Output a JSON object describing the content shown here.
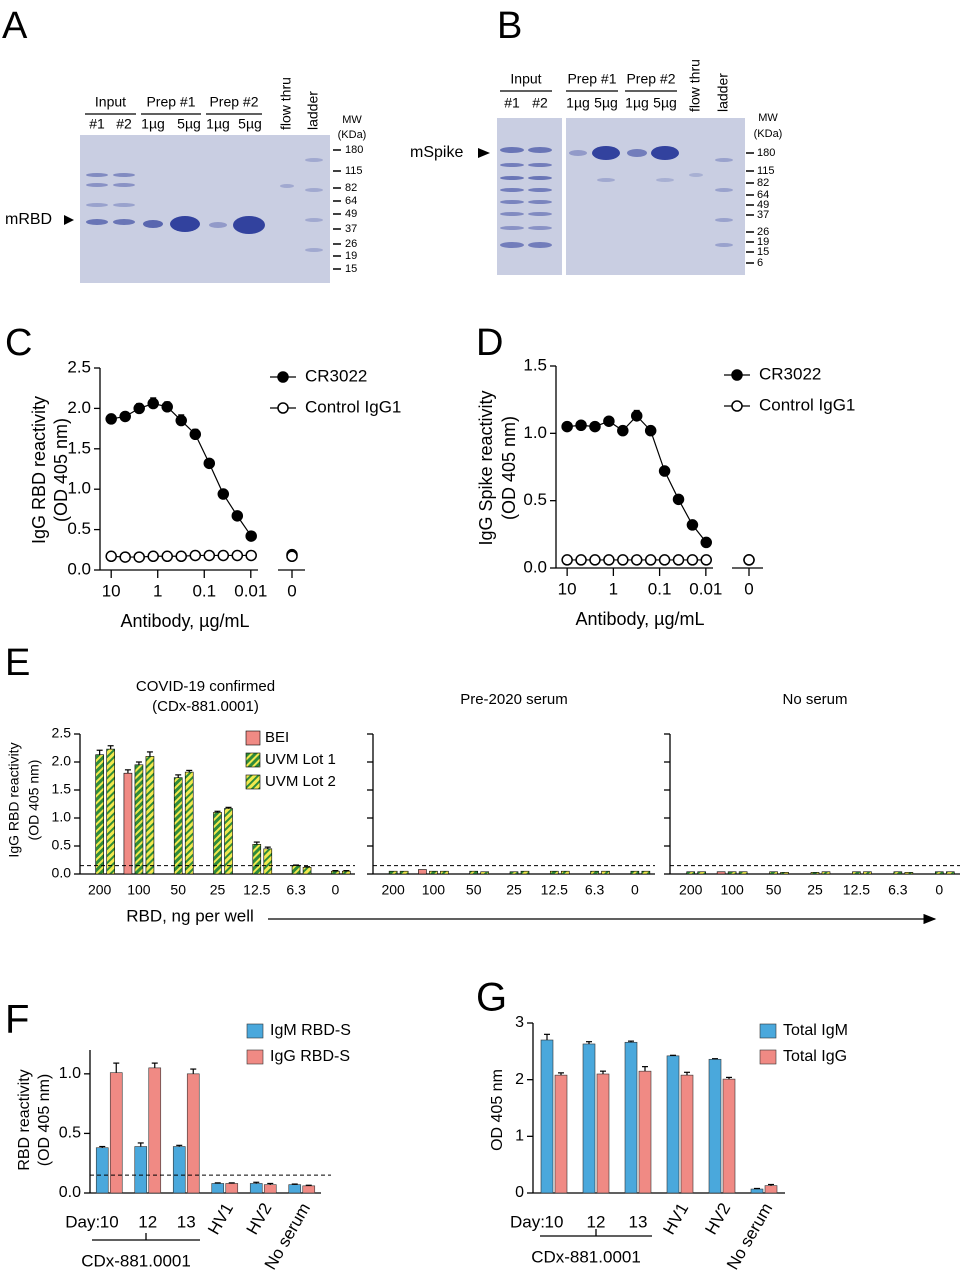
{
  "gels": [
    {
      "letter": "A",
      "protein": "mRBD",
      "groups": [
        {
          "label": "Input",
          "lanes": [
            "#1",
            "#2"
          ]
        },
        {
          "label": "Prep #1",
          "lanes": [
            "1µg",
            "5µg"
          ]
        },
        {
          "label": "Prep #2",
          "lanes": [
            "1µg",
            "5µg"
          ]
        }
      ],
      "extra_lanes": [
        "flow thru",
        "ladder"
      ],
      "mw_title": "MW",
      "mw_unit": "(KDa)",
      "markers": [
        "180",
        "115",
        "82",
        "64",
        "49",
        "37",
        "26",
        "19",
        "15"
      ]
    },
    {
      "letter": "B",
      "protein": "mSpike",
      "groups": [
        {
          "label": "Input",
          "lanes": [
            "#1",
            "#2"
          ]
        },
        {
          "label": "Prep #1",
          "lanes": [
            "1µg",
            "5µg"
          ]
        },
        {
          "label": "Prep #2",
          "lanes": [
            "1µg",
            "5µg"
          ]
        }
      ],
      "extra_lanes": [
        "flow thru",
        "ladder"
      ],
      "mw_title": "MW",
      "mw_unit": "(KDa)",
      "markers": [
        "180",
        "115",
        "82",
        "64",
        "49",
        "37",
        "26",
        "19",
        "15",
        "6"
      ]
    }
  ],
  "chart_data": [
    {
      "letter": "C",
      "type": "line",
      "ylabel": [
        "IgG RBD reactivity",
        "(OD 405 nm)"
      ],
      "xlabel": "Antibody, µg/mL",
      "x": [
        10,
        5,
        2.5,
        1.25,
        0.625,
        0.3125,
        0.156,
        0.078,
        0.039,
        0.0195,
        0.0098
      ],
      "xlim": [
        15,
        0.007
      ],
      "xticks": [
        10,
        1,
        0.1,
        0.01
      ],
      "log_x": true,
      "zero_label": "0",
      "ylim": [
        0,
        2.5
      ],
      "yticks": [
        {
          "value": 0,
          "label": "0.0"
        },
        0.5,
        {
          "value": 1,
          "label": "1.0"
        },
        1.5,
        {
          "value": 2,
          "label": "2.0"
        },
        2.5
      ],
      "series": [
        {
          "name": "CR3022",
          "color": "#000000",
          "marker": "filled",
          "values": [
            1.87,
            1.9,
            2.0,
            2.06,
            2.02,
            1.85,
            1.68,
            1.32,
            0.94,
            0.67,
            0.42
          ],
          "errors": [
            0.05,
            0.05,
            0.06,
            0.07,
            0.06,
            0.07,
            0.06,
            0.04,
            0.02,
            0.02,
            0.02
          ],
          "zero_value": 0.19
        },
        {
          "name": "Control IgG1",
          "color": "#000000",
          "marker": "open",
          "values": [
            0.17,
            0.16,
            0.16,
            0.17,
            0.17,
            0.17,
            0.18,
            0.18,
            0.18,
            0.18,
            0.18
          ],
          "zero_value": 0.17
        }
      ]
    },
    {
      "letter": "D",
      "type": "line",
      "ylabel": [
        "IgG Spike reactivity",
        "(OD 405 nm)"
      ],
      "xlabel": "Antibody, µg/mL",
      "x": [
        10,
        5,
        2.5,
        1.25,
        0.625,
        0.3125,
        0.156,
        0.078,
        0.039,
        0.0195,
        0.0098
      ],
      "xlim": [
        15,
        0.007
      ],
      "xticks": [
        10,
        1,
        0.1,
        0.01
      ],
      "log_x": true,
      "zero_label": "0",
      "ylim": [
        0,
        1.5
      ],
      "yticks": [
        {
          "value": 0,
          "label": "0.0"
        },
        0.5,
        {
          "value": 1,
          "label": "1.0"
        },
        1.5
      ],
      "series": [
        {
          "name": "CR3022",
          "color": "#000000",
          "marker": "filled",
          "values": [
            1.05,
            1.06,
            1.05,
            1.09,
            1.02,
            1.13,
            1.02,
            0.72,
            0.51,
            0.32,
            0.19
          ],
          "errors": [
            0.02,
            0.02,
            0.02,
            0.02,
            0.02,
            0.04,
            0.02,
            0.02,
            0.02,
            0.02,
            0.02
          ],
          "zero_value": 0.06
        },
        {
          "name": "Control IgG1",
          "color": "#000000",
          "marker": "open",
          "values": [
            0.06,
            0.06,
            0.06,
            0.06,
            0.06,
            0.06,
            0.06,
            0.06,
            0.06,
            0.06,
            0.06
          ],
          "zero_value": 0.06
        }
      ]
    },
    {
      "letter": "E",
      "type": "bar-panels",
      "ylabel": [
        "IgG RBD reactivity",
        "(OD 405 nm)"
      ],
      "xlabel": "RBD, ng per well",
      "categories": [
        "200",
        "100",
        "50",
        "25",
        "12.5",
        "6.3",
        "0"
      ],
      "ylim": [
        0,
        2.5
      ],
      "yticks": [
        {
          "value": 0,
          "label": "0.0"
        },
        0.5,
        {
          "value": 1,
          "label": "1.0"
        },
        1.5,
        {
          "value": 2,
          "label": "2.0"
        },
        2.5
      ],
      "threshold": 0.15,
      "series": [
        {
          "name": "BEI",
          "color": "#f08a84"
        },
        {
          "name": "UVM Lot 1",
          "color": "#2e8b3a",
          "stripe": "#f2e94e"
        },
        {
          "name": "UVM Lot 2",
          "color": "#f2e94e",
          "stripe": "#2e8b3a"
        }
      ],
      "subplots": [
        {
          "title": [
            "COVID-19 confirmed",
            "(CDx-881.0001)"
          ],
          "values": [
            [
              null,
              1.8,
              null,
              null,
              null,
              null,
              null
            ],
            [
              2.13,
              1.95,
              1.72,
              1.1,
              0.53,
              0.15,
              0.05
            ],
            [
              2.23,
              2.1,
              1.82,
              1.17,
              0.45,
              0.12,
              0.05
            ]
          ],
          "errors": [
            [
              null,
              0.06,
              null,
              null,
              null,
              null,
              null
            ],
            [
              0.08,
              0.05,
              0.05,
              0.02,
              0.04,
              0.01,
              0.01
            ],
            [
              0.06,
              0.08,
              0.03,
              0.02,
              0.03,
              0.01,
              0.01
            ]
          ]
        },
        {
          "title": [
            "Pre-2020 serum"
          ],
          "values": [
            [
              null,
              0.08,
              null,
              null,
              null,
              null,
              null
            ],
            [
              0.05,
              0.05,
              0.05,
              0.04,
              0.05,
              0.05,
              0.05
            ],
            [
              0.05,
              0.05,
              0.04,
              0.05,
              0.05,
              0.05,
              0.05
            ]
          ]
        },
        {
          "title": [
            "No serum"
          ],
          "values": [
            [
              null,
              0.04,
              null,
              null,
              null,
              null,
              null
            ],
            [
              0.04,
              0.04,
              0.04,
              0.03,
              0.04,
              0.04,
              0.04
            ],
            [
              0.04,
              0.04,
              0.03,
              0.04,
              0.04,
              0.03,
              0.04
            ]
          ]
        }
      ]
    },
    {
      "letter": "F",
      "type": "bar",
      "ylabel": [
        "RBD reactivity",
        "(OD 405 nm)"
      ],
      "prefix": "Day:",
      "categories": [
        "10",
        "12",
        "13",
        "HV1",
        "HV2",
        "No serum"
      ],
      "group_label": "CDx-881.0001",
      "ylim": [
        0,
        1.2
      ],
      "yticks": [
        {
          "value": 0,
          "label": "0.0"
        },
        0.5,
        {
          "value": 1,
          "label": "1.0"
        }
      ],
      "threshold": 0.15,
      "series": [
        {
          "name": "IgM RBD-S",
          "color": "#4aa8dc",
          "values": [
            0.38,
            0.39,
            0.39,
            0.08,
            0.08,
            0.07
          ],
          "errors": [
            0.01,
            0.03,
            0.01,
            0.005,
            0.01,
            0.005
          ]
        },
        {
          "name": "IgG RBD-S",
          "color": "#f08a84",
          "values": [
            1.01,
            1.05,
            1.0,
            0.08,
            0.07,
            0.06
          ],
          "errors": [
            0.08,
            0.04,
            0.04,
            0.005,
            0.01,
            0.005
          ]
        }
      ]
    },
    {
      "letter": "G",
      "type": "bar",
      "ylabel": [
        "OD 405 nm"
      ],
      "prefix": "Day:",
      "categories": [
        "10",
        "12",
        "13",
        "HV1",
        "HV2",
        "No serum"
      ],
      "group_label": "CDx-881.0001",
      "ylim": [
        0,
        3
      ],
      "yticks": [
        0,
        1,
        2,
        3
      ],
      "series": [
        {
          "name": "Total IgM",
          "color": "#4aa8dc",
          "values": [
            2.7,
            2.63,
            2.66,
            2.42,
            2.36,
            0.07
          ],
          "errors": [
            0.1,
            0.04,
            0.02,
            0.01,
            0.01,
            0.01
          ]
        },
        {
          "name": "Total IgG",
          "color": "#f08a84",
          "values": [
            2.08,
            2.1,
            2.15,
            2.08,
            2.01,
            0.13
          ],
          "errors": [
            0.04,
            0.05,
            0.08,
            0.05,
            0.03,
            0.02
          ]
        }
      ]
    }
  ]
}
